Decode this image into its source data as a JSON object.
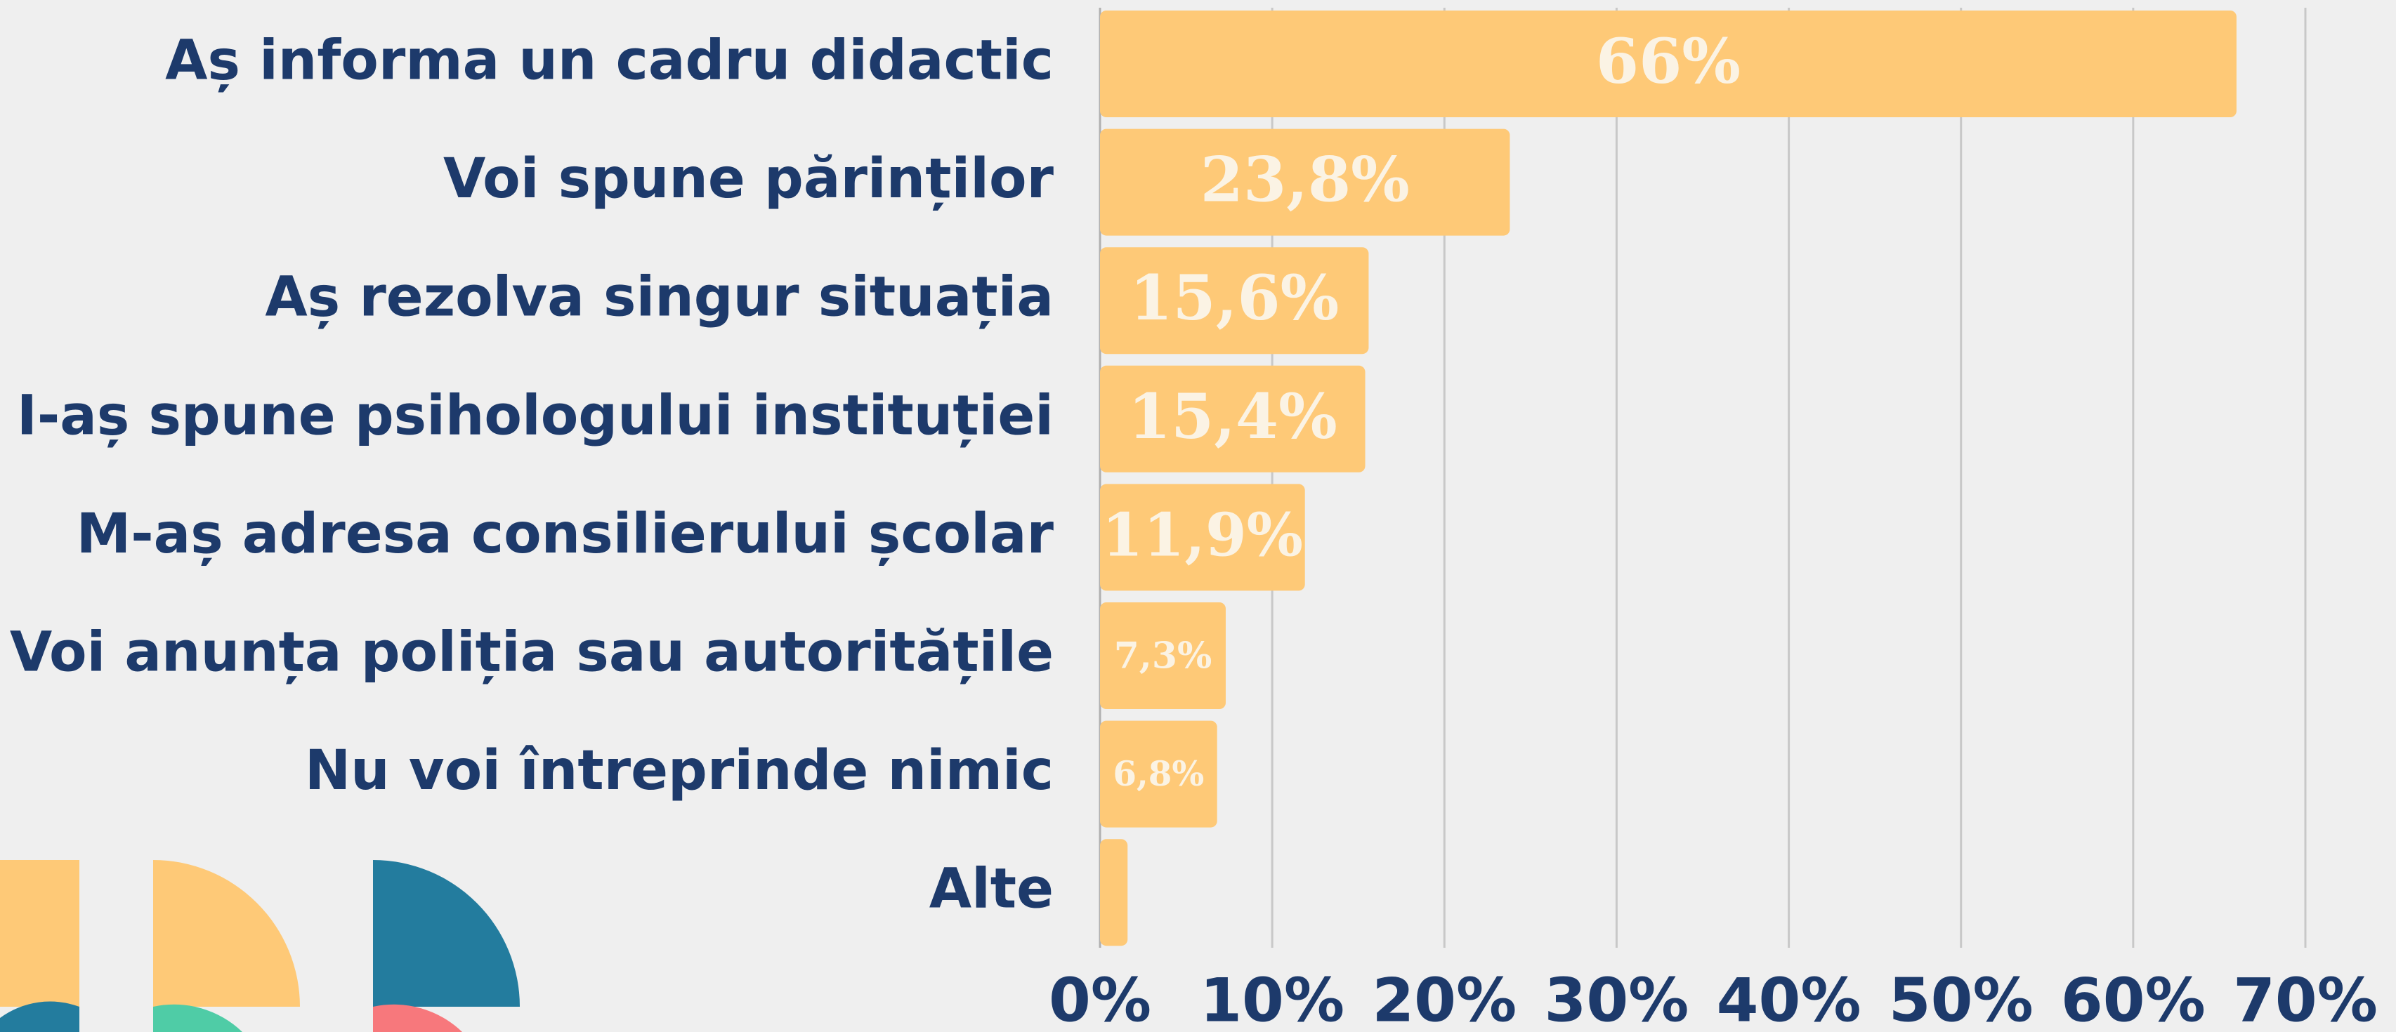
{
  "chart_data": {
    "type": "barh",
    "categories": [
      "Aș informa un cadru didactic",
      "Voi spune părinților",
      "Aș rezolva singur situația",
      "I-aș spune psihologului instituției",
      "M-aș adresa consilierului școlar",
      "Voi anunța poliția sau autoritățile",
      "Nu voi întreprinde nimic",
      "Alte"
    ],
    "values": [
      66,
      23.8,
      15.6,
      15.4,
      11.9,
      7.3,
      6.8,
      1.6
    ],
    "value_labels": [
      "66%",
      "23,8%",
      "15,6%",
      "15,4%",
      "11,9%",
      "7,3%",
      "6,8%",
      null
    ],
    "color": "#fec977",
    "xlim": [
      0,
      70
    ],
    "xticks": [
      {
        "value": 0,
        "label": "0%"
      },
      {
        "value": 10,
        "label": "10%"
      },
      {
        "value": 20,
        "label": "20%"
      },
      {
        "value": 30,
        "label": "30%"
      },
      {
        "value": 40,
        "label": "40%"
      },
      {
        "value": 50,
        "label": "50%"
      },
      {
        "value": 60,
        "label": "60%"
      },
      {
        "value": 70,
        "label": "70%"
      }
    ],
    "grid": true
  }
}
